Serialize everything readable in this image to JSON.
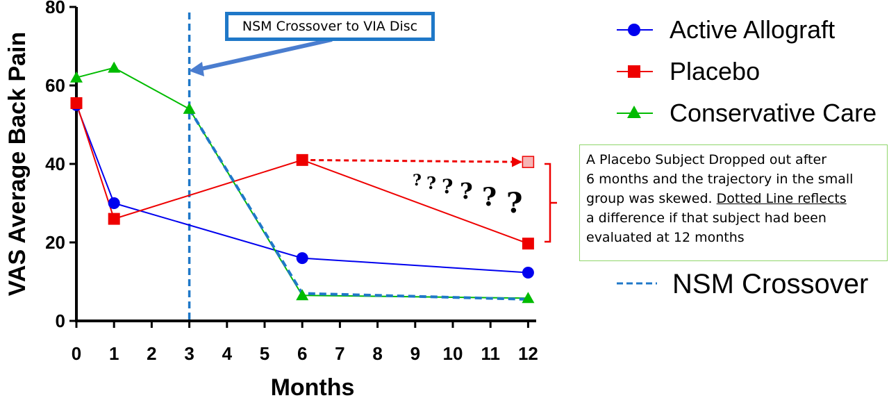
{
  "chart_data": {
    "type": "line",
    "xlabel": "Months",
    "ylabel": "VAS Average Back Pain",
    "x_ticks": [
      "0",
      "1",
      "2",
      "3",
      "4",
      "5",
      "6",
      "7",
      "8",
      "9",
      "10",
      "11",
      "12"
    ],
    "y_ticks": [
      "0",
      "20",
      "40",
      "60",
      "80"
    ],
    "ylim": [
      0,
      80
    ],
    "series": [
      {
        "name": "Active Allograft",
        "color": "#0000ee",
        "marker": "circle",
        "points": [
          [
            0,
            55
          ],
          [
            1,
            30
          ],
          [
            6,
            16
          ],
          [
            12,
            12.3
          ]
        ]
      },
      {
        "name": "Placebo",
        "color": "#ee0000",
        "marker": "square",
        "points": [
          [
            0,
            55.5
          ],
          [
            1,
            26
          ],
          [
            6,
            41
          ],
          [
            12,
            19.7
          ]
        ]
      },
      {
        "name": "Conservative Care",
        "color": "#00bb00",
        "marker": "triangle",
        "points": [
          [
            0,
            62
          ],
          [
            1,
            64.5
          ],
          [
            3,
            54
          ],
          [
            6,
            6.5
          ],
          [
            12,
            5.8
          ]
        ]
      }
    ],
    "crossover": {
      "name": "NSM Crossover",
      "x": 3,
      "color": "#1f78c8",
      "path": [
        [
          3,
          54
        ],
        [
          6,
          7
        ],
        [
          12,
          5.5
        ]
      ]
    },
    "placebo_projection": {
      "from": [
        6,
        41
      ],
      "to": [
        12,
        40.5
      ],
      "color": "#ee0000"
    },
    "question_marks": [
      "?",
      "?",
      "?",
      "?",
      "?",
      "?"
    ],
    "legend_position": "right"
  },
  "annotations": {
    "callout": "NSM Crossover to VIA Disc",
    "note_lines": [
      "A Placebo Subject Dropped out after",
      "6 months and the trajectory in the small",
      "group was skewed.",
      "Dotted Line reflects",
      "a difference if that subject had been",
      "evaluated at 12 months"
    ]
  },
  "legend": {
    "items": [
      "Active Allograft",
      "Placebo",
      "Conservative Care"
    ],
    "crossover_label": "NSM Crossover"
  }
}
